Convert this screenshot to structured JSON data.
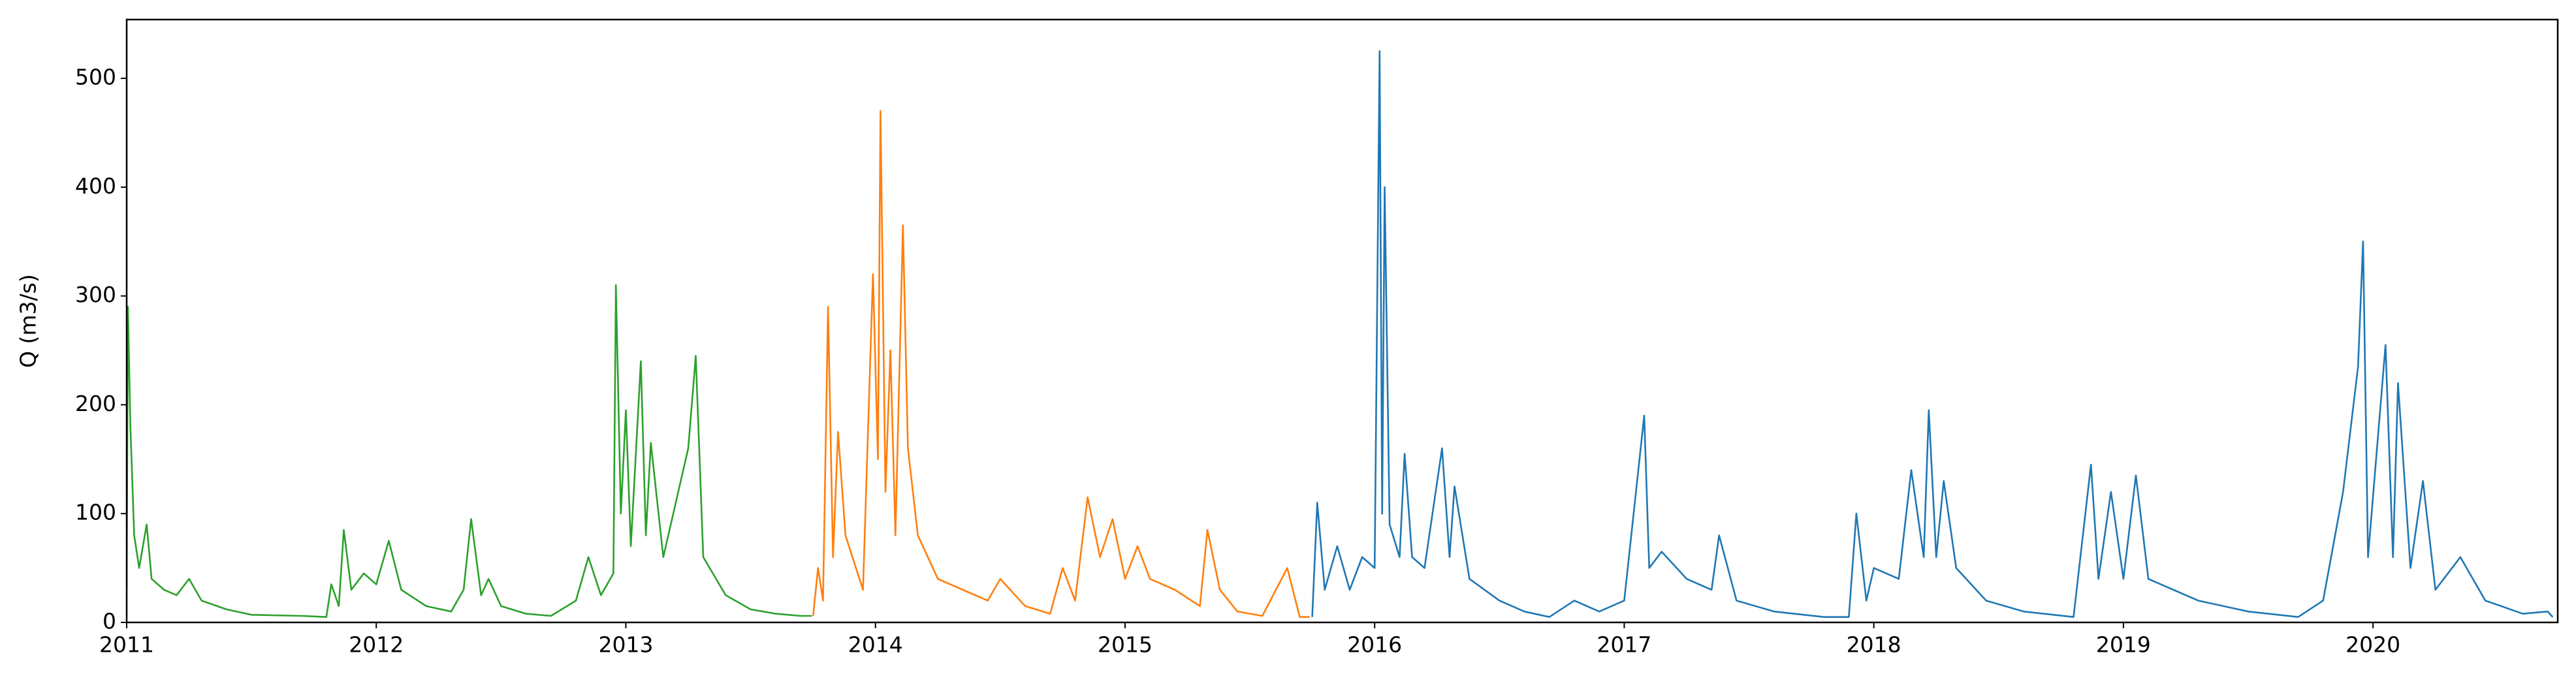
{
  "chart_data": {
    "type": "line",
    "ylabel": "Q (m3/s)",
    "xlim": [
      2011,
      2020.74
    ],
    "xticks": [
      2011,
      2012,
      2013,
      2014,
      2015,
      2016,
      2017,
      2018,
      2019,
      2020
    ],
    "ylim": [
      0,
      554
    ],
    "yticks": [
      0,
      100,
      200,
      300,
      400,
      500
    ],
    "grid": false,
    "series": [
      {
        "color": "#2ca02c",
        "x": [
          2011.0,
          2011.005,
          2011.015,
          2011.03,
          2011.05,
          2011.08,
          2011.1,
          2011.15,
          2011.2,
          2011.25,
          2011.3,
          2011.4,
          2011.5,
          2011.7,
          2011.8,
          2011.82,
          2011.85,
          2011.87,
          2011.9,
          2011.95,
          2012.0,
          2012.05,
          2012.1,
          2012.2,
          2012.3,
          2012.35,
          2012.38,
          2012.42,
          2012.45,
          2012.5,
          2012.6,
          2012.7,
          2012.8,
          2012.85,
          2012.9,
          2012.95,
          2012.96,
          2012.98,
          2013.0,
          2013.02,
          2013.06,
          2013.08,
          2013.1,
          2013.15,
          2013.2,
          2013.25,
          2013.28,
          2013.31,
          2013.4,
          2013.5,
          2013.6,
          2013.7,
          2013.745
        ],
        "values": [
          30,
          290,
          180,
          80,
          50,
          90,
          40,
          30,
          25,
          40,
          20,
          12,
          7,
          6,
          5,
          35,
          15,
          85,
          30,
          45,
          35,
          75,
          30,
          15,
          10,
          30,
          95,
          25,
          40,
          15,
          8,
          6,
          20,
          60,
          25,
          45,
          310,
          100,
          195,
          70,
          240,
          80,
          165,
          60,
          110,
          160,
          245,
          60,
          25,
          12,
          8,
          6,
          6
        ]
      },
      {
        "color": "#ff7f0e",
        "x": [
          2013.75,
          2013.77,
          2013.79,
          2013.81,
          2013.83,
          2013.85,
          2013.88,
          2013.95,
          2013.99,
          2014.01,
          2014.02,
          2014.04,
          2014.06,
          2014.08,
          2014.11,
          2014.13,
          2014.17,
          2014.25,
          2014.35,
          2014.45,
          2014.5,
          2014.6,
          2014.7,
          2014.75,
          2014.8,
          2014.85,
          2014.9,
          2014.95,
          2015.0,
          2015.05,
          2015.1,
          2015.2,
          2015.3,
          2015.33,
          2015.38,
          2015.45,
          2015.55,
          2015.65,
          2015.7,
          2015.74
        ],
        "values": [
          6,
          50,
          20,
          290,
          60,
          175,
          80,
          30,
          320,
          150,
          470,
          120,
          250,
          80,
          365,
          160,
          80,
          40,
          30,
          20,
          40,
          15,
          8,
          50,
          20,
          115,
          60,
          95,
          40,
          70,
          40,
          30,
          15,
          85,
          30,
          10,
          6,
          50,
          5,
          5
        ]
      },
      {
        "color": "#1f77b4",
        "x": [
          2015.75,
          2015.77,
          2015.8,
          2015.85,
          2015.9,
          2015.95,
          2016.0,
          2016.02,
          2016.03,
          2016.04,
          2016.06,
          2016.1,
          2016.12,
          2016.15,
          2016.2,
          2016.27,
          2016.3,
          2016.32,
          2016.38,
          2016.5,
          2016.6,
          2016.7,
          2016.8,
          2016.9,
          2017.0,
          2017.08,
          2017.1,
          2017.15,
          2017.25,
          2017.35,
          2017.38,
          2017.45,
          2017.6,
          2017.8,
          2017.9,
          2017.93,
          2017.97,
          2018.0,
          2018.1,
          2018.15,
          2018.2,
          2018.22,
          2018.25,
          2018.28,
          2018.33,
          2018.45,
          2018.6,
          2018.8,
          2018.87,
          2018.9,
          2018.95,
          2019.0,
          2019.05,
          2019.1,
          2019.2,
          2019.3,
          2019.5,
          2019.7,
          2019.8,
          2019.88,
          2019.94,
          2019.96,
          2019.98,
          2020.05,
          2020.08,
          2020.1,
          2020.15,
          2020.2,
          2020.25,
          2020.35,
          2020.45,
          2020.6,
          2020.7,
          2020.72
        ],
        "values": [
          5,
          110,
          30,
          70,
          30,
          60,
          50,
          525,
          100,
          400,
          90,
          60,
          155,
          60,
          50,
          160,
          60,
          125,
          40,
          20,
          10,
          5,
          20,
          10,
          20,
          190,
          50,
          65,
          40,
          30,
          80,
          20,
          10,
          5,
          5,
          100,
          20,
          50,
          40,
          140,
          60,
          195,
          60,
          130,
          50,
          20,
          10,
          5,
          145,
          40,
          120,
          40,
          135,
          40,
          30,
          20,
          10,
          5,
          20,
          120,
          235,
          350,
          60,
          255,
          60,
          220,
          50,
          130,
          30,
          60,
          20,
          8,
          10,
          5
        ]
      }
    ]
  }
}
